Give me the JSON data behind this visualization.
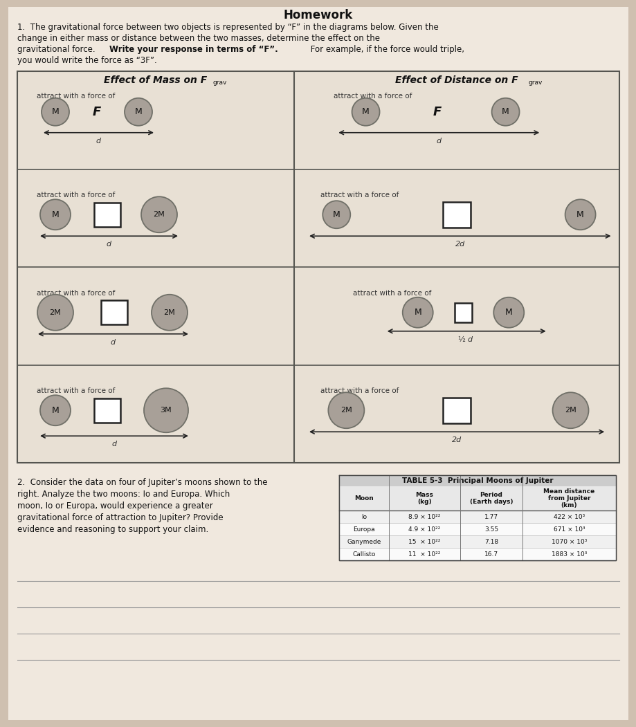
{
  "title": "Homework",
  "bg_color": "#cfc0b0",
  "paper_color": "#f0e8de",
  "intro_line1": "1.  The gravitational force between two objects is represented by “F” in the diagrams below. Given the",
  "intro_line2": "change in either mass or distance between the two masses, determine the effect on the",
  "intro_line3_normal": "gravitational force. ",
  "intro_line3_bold": "Write your response in terms of “F”.",
  "intro_line3_end": " For example, if the force would triple,",
  "intro_line4": "you would write the force as “3F”.",
  "circle_color": "#a8a098",
  "circle_edge": "#707068",
  "box_color": "#ffffff",
  "box_edge": "#222222",
  "diag_bg": "#e8e0d4",
  "diag_border": "#555550",
  "arrow_color": "#222222",
  "text_color": "#111111",
  "small_text_color": "#333333",
  "q2_lines": [
    "2.  Consider the data on four of Jupiter’s moons shown to the",
    "right. Analyze the two moons: Io and Europa. Which",
    "moon, Io or Europa, would experience a greater",
    "gravitational force of attraction to Jupiter? Provide",
    "evidence and reasoning to support your claim."
  ],
  "table_title": "TABLE 5-3  Principal Moons of Jupiter",
  "table_col_headers": [
    "Moon",
    "Mass\n(kg)",
    "Period\n(Earth days)",
    "Mean distance\nfrom Jupiter\n(km)"
  ],
  "table_rows": [
    [
      "Io",
      "8.9 × 10²²",
      "1.77",
      "422 × 10³"
    ],
    [
      "Europa",
      "4.9 × 10²²",
      "3.55",
      "671 × 10³"
    ],
    [
      "Ganymede",
      "15  × 10²²",
      "7.18",
      "1070 × 10³"
    ],
    [
      "Callisto",
      "11  × 10²²",
      "16.7",
      "1883 × 10³"
    ]
  ]
}
